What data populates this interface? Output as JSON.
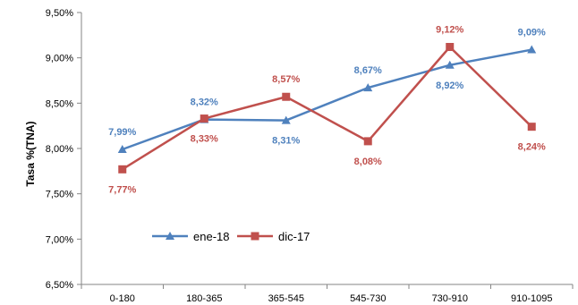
{
  "chart_data": {
    "type": "line",
    "title": "",
    "xlabel": "",
    "ylabel": "Tasa %(TNA)",
    "ylim": [
      6.5,
      9.5
    ],
    "yticks": [
      "6,50%",
      "7,00%",
      "7,50%",
      "8,00%",
      "8,50%",
      "9,00%",
      "9,50%"
    ],
    "categories": [
      "0-180",
      "180-365",
      "365-545",
      "545-730",
      "730-910",
      "910-1095"
    ],
    "grid": false,
    "legend_position": "bottom-left-inside",
    "series": [
      {
        "name": "ene-18",
        "color": "#4F81BD",
        "marker": "triangle",
        "values": [
          7.99,
          8.32,
          8.31,
          8.67,
          8.92,
          9.09
        ],
        "labels": [
          "7,99%",
          "8,32%",
          "8,31%",
          "8,67%",
          "8,92%",
          "9,09%"
        ]
      },
      {
        "name": "dic-17",
        "color": "#C0504D",
        "marker": "square",
        "values": [
          7.77,
          8.33,
          8.57,
          8.08,
          9.12,
          8.24
        ],
        "labels": [
          "7,77%",
          "8,33%",
          "8,57%",
          "8,08%",
          "9,12%",
          "8,24%"
        ]
      }
    ]
  }
}
